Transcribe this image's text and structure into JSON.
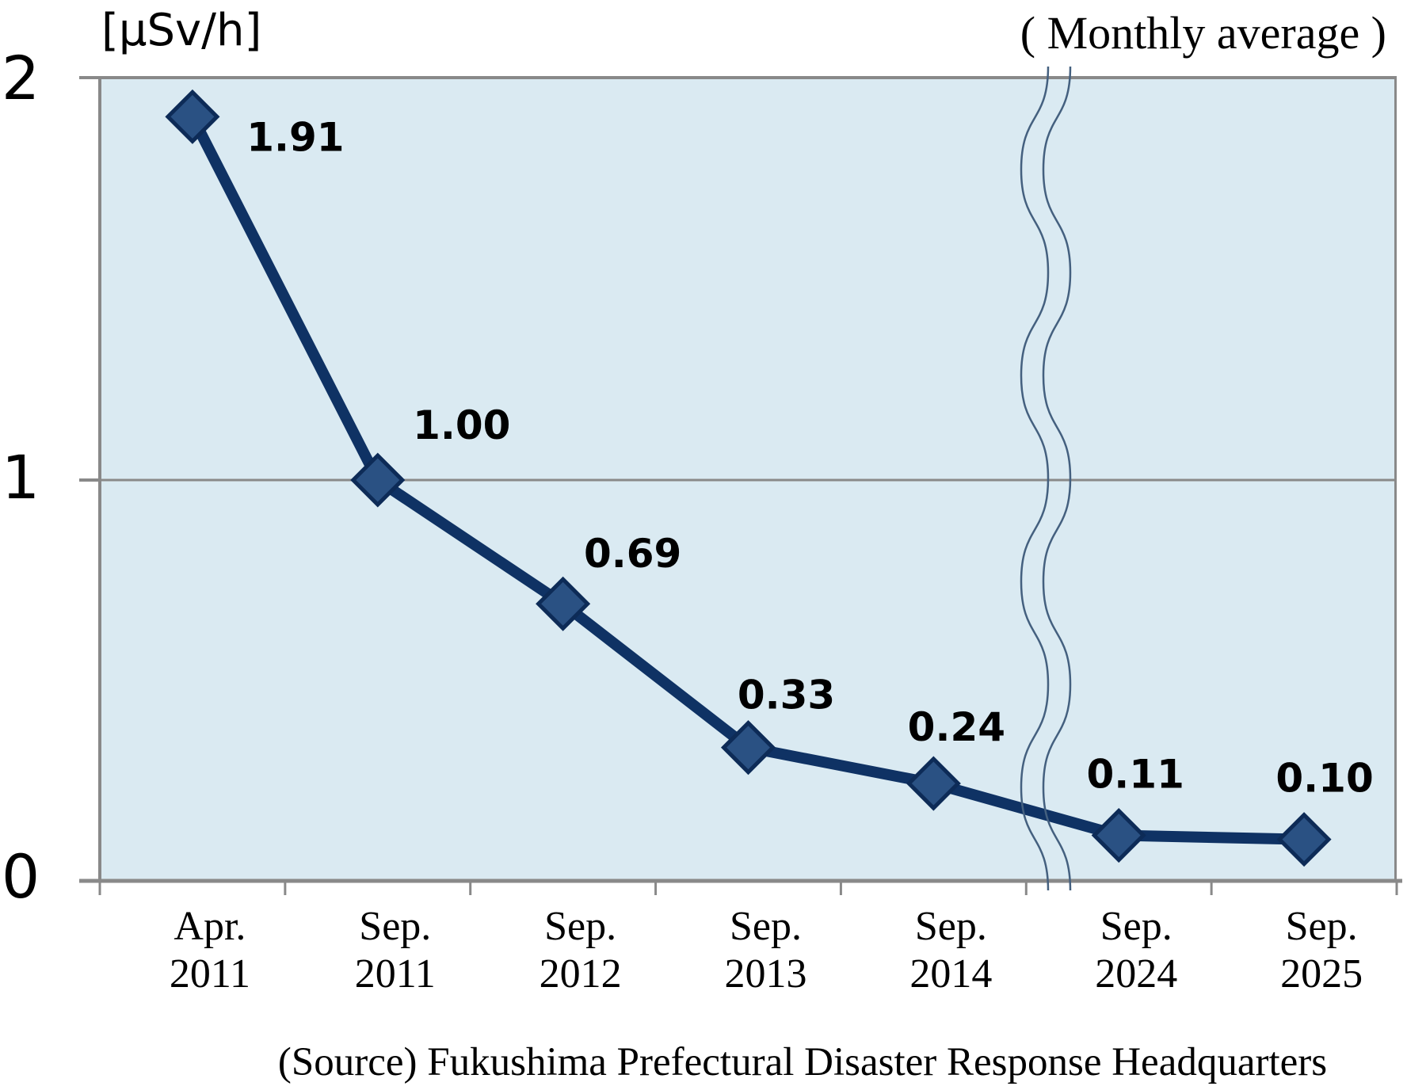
{
  "chart_data": {
    "type": "line",
    "unit_label": "[μSv/h]",
    "note": "( Monthly average )",
    "source": "(Source) Fukushima Prefectural Disaster Response Headquarters",
    "categories": [
      [
        "Apr.",
        "2011"
      ],
      [
        "Sep.",
        "2011"
      ],
      [
        "Sep.",
        "2012"
      ],
      [
        "Sep.",
        "2013"
      ],
      [
        "Sep.",
        "2014"
      ],
      [
        "Sep.",
        "2024"
      ],
      [
        "Sep.",
        "2025"
      ]
    ],
    "values": [
      1.91,
      1.0,
      0.69,
      0.33,
      0.24,
      0.11,
      0.1
    ],
    "value_labels": [
      "1.91",
      "1.00",
      "0.69",
      "0.33",
      "0.24",
      "0.11",
      "0.10"
    ],
    "ylim": [
      0,
      2
    ],
    "y_ticks": [
      0,
      1,
      2
    ],
    "grid": "horizontal gridline at y=1",
    "legend_position": "none",
    "axis_break": {
      "between": [
        "Sep. 2014",
        "Sep. 2024"
      ],
      "style": "double wavy line"
    },
    "colors": {
      "plot_bg": "#daeaf2",
      "axis": "#898989",
      "line": "#0f3264",
      "marker_fill": "#2a5183",
      "marker_stroke": "#0d2b57",
      "break_line": "#44607f",
      "label_text": "#000000"
    }
  }
}
